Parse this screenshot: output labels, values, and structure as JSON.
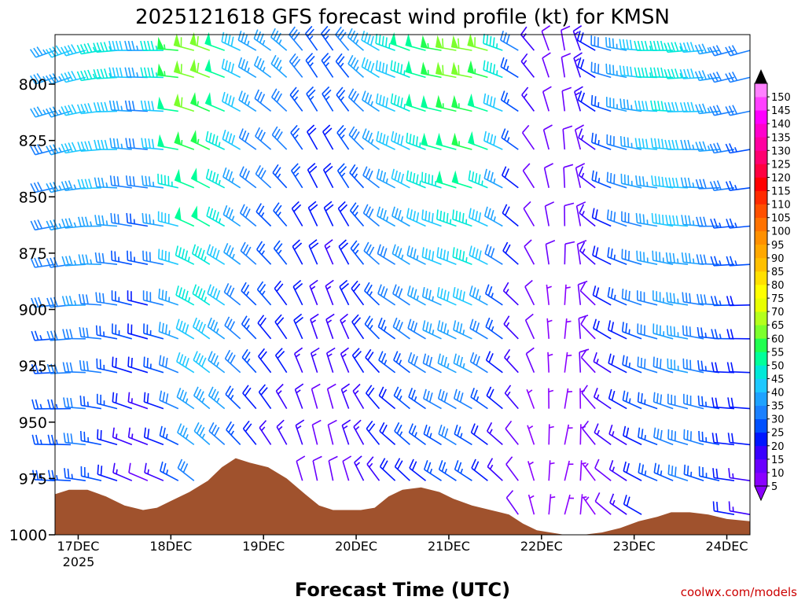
{
  "chart_data": {
    "type": "wind_profile",
    "title": "2025121618 GFS forecast wind profile (kt) for KMSN",
    "xlabel": "Forecast Time (UTC)",
    "credit": "coolwx.com/models",
    "x_ticks": [
      "17DEC",
      "18DEC",
      "19DEC",
      "20DEC",
      "21DEC",
      "22DEC",
      "23DEC",
      "24DEC"
    ],
    "x_year_label": "2025",
    "xlim_days": [
      16.75,
      24.25
    ],
    "y_ticks": [
      800,
      825,
      850,
      875,
      900,
      925,
      950,
      975,
      1000
    ],
    "ylim_hpa": [
      1000,
      778
    ],
    "y_inverted": true,
    "colorbar": {
      "ticks": [
        5,
        10,
        15,
        20,
        25,
        30,
        35,
        40,
        45,
        50,
        55,
        60,
        65,
        70,
        75,
        80,
        85,
        90,
        95,
        100,
        105,
        110,
        115,
        120,
        125,
        130,
        135,
        140,
        145,
        150
      ],
      "colors": [
        "#8a00ff",
        "#6a00ff",
        "#3a00ff",
        "#0016ff",
        "#0050ff",
        "#1a80ff",
        "#1ea2ff",
        "#1ec8ff",
        "#00e8d8",
        "#00ff9a",
        "#20ff50",
        "#7cff2c",
        "#b4ff1c",
        "#e8ff00",
        "#ffff00",
        "#ffe000",
        "#ffc000",
        "#ffa800",
        "#ff9000",
        "#ff7200",
        "#ff5000",
        "#ff2a00",
        "#ff0000",
        "#ff0040",
        "#ff0070",
        "#ff00a0",
        "#ff00cc",
        "#ff00ff",
        "#ff40ff",
        "#ff80ff"
      ]
    },
    "surface_pressure": {
      "day": [
        16.75,
        16.9,
        17.1,
        17.3,
        17.5,
        17.7,
        17.85,
        18.0,
        18.2,
        18.4,
        18.55,
        18.7,
        18.85,
        19.05,
        19.25,
        19.45,
        19.6,
        19.75,
        19.9,
        20.05,
        20.2,
        20.35,
        20.5,
        20.7,
        20.9,
        21.05,
        21.25,
        21.45,
        21.65,
        21.8,
        21.95,
        22.1,
        22.25,
        22.45,
        22.65,
        22.85,
        23.05,
        23.25,
        23.4,
        23.6,
        23.8,
        24.0,
        24.25
      ],
      "hpa": [
        982,
        980,
        980,
        983,
        987,
        989,
        988,
        985,
        981,
        976,
        970,
        966,
        968,
        970,
        975,
        982,
        987,
        989,
        989,
        989,
        988,
        983,
        980,
        979,
        981,
        984,
        987,
        989,
        991,
        995,
        998,
        999,
        1000,
        1000,
        999,
        997,
        994,
        992,
        990,
        990,
        991,
        993,
        994
      ]
    },
    "barbs": {
      "levels_hpa": [
        785,
        797,
        812,
        829,
        846,
        863,
        880,
        898,
        913,
        928,
        944,
        960,
        976,
        991
      ],
      "days": [
        16.75,
        16.92,
        17.08,
        17.25,
        17.42,
        17.58,
        17.75,
        17.92,
        18.08,
        18.25,
        18.42,
        18.58,
        18.75,
        18.92,
        19.08,
        19.25,
        19.42,
        19.58,
        19.75,
        19.92,
        20.08,
        20.25,
        20.42,
        20.58,
        20.75,
        20.92,
        21.08,
        21.25,
        21.42,
        21.58,
        21.75,
        21.92,
        22.08,
        22.25,
        22.42,
        22.58,
        22.75,
        22.92,
        23.08,
        23.25,
        23.42,
        23.58,
        23.75,
        23.92,
        24.08,
        24.25
      ],
      "direction_deg": [
        250,
        250,
        255,
        260,
        265,
        270,
        270,
        270,
        275,
        285,
        290,
        290,
        295,
        300,
        305,
        310,
        320,
        325,
        325,
        320,
        310,
        300,
        290,
        290,
        285,
        280,
        280,
        280,
        285,
        290,
        300,
        320,
        340,
        350,
        340,
        300,
        285,
        280,
        275,
        270,
        270,
        265,
        265,
        260,
        255,
        255
      ],
      "speed_kt_top": [
        35,
        38,
        42,
        45,
        45,
        40,
        35,
        45,
        55,
        62,
        60,
        52,
        42,
        36,
        34,
        34,
        30,
        26,
        25,
        28,
        34,
        40,
        44,
        48,
        52,
        56,
        60,
        62,
        58,
        45,
        28,
        14,
        10,
        10,
        14,
        20,
        30,
        36,
        40,
        44,
        46,
        44,
        40,
        36,
        32,
        30
      ],
      "speed_kt_bottom": [
        22,
        24,
        25,
        22,
        16,
        12,
        10,
        14,
        20,
        28,
        30,
        28,
        22,
        18,
        14,
        12,
        10,
        8,
        8,
        10,
        12,
        14,
        16,
        18,
        20,
        20,
        22,
        20,
        16,
        12,
        8,
        5,
        5,
        5,
        5,
        6,
        10,
        14,
        18,
        22,
        26,
        28,
        26,
        22,
        18,
        16
      ]
    }
  }
}
